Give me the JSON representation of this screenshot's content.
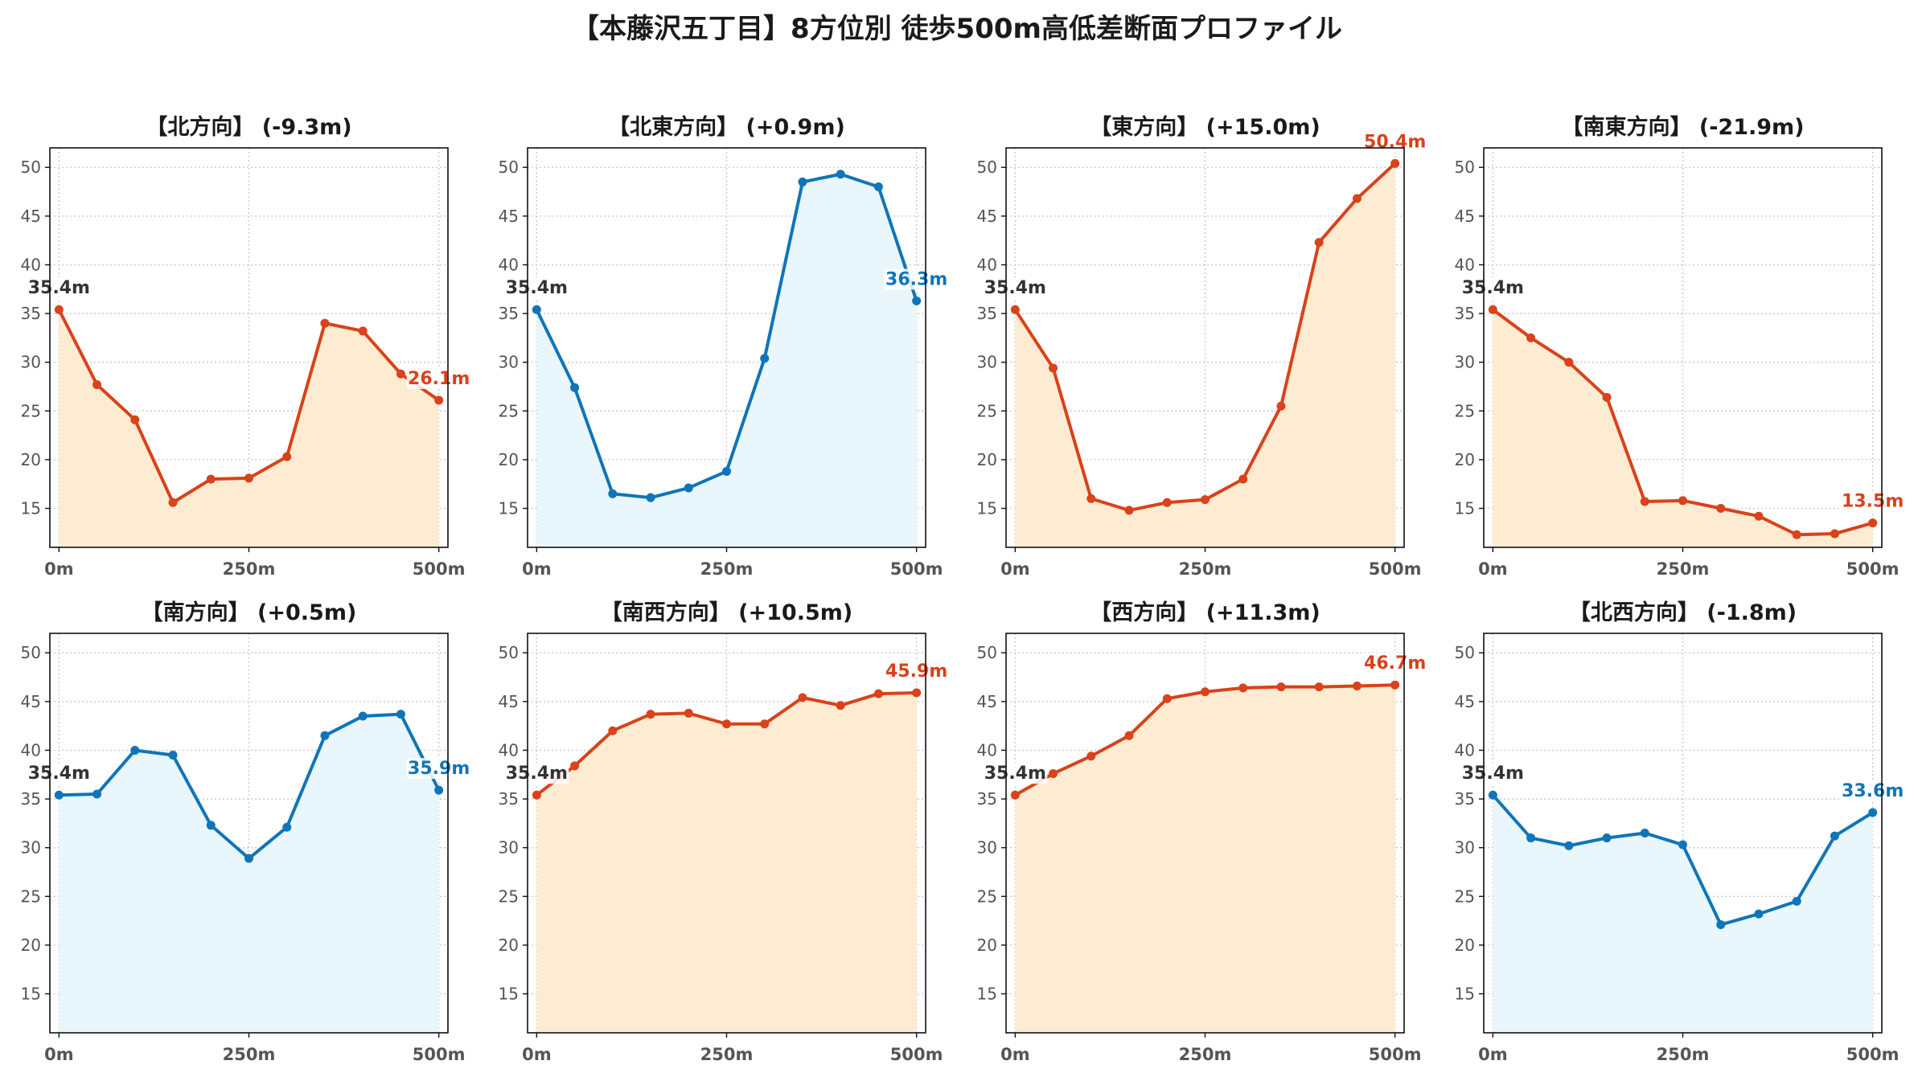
{
  "page": {
    "suptitle": "【本藤沢五丁目】8方位別 徒歩500m高低差断面プロファイル"
  },
  "colors": {
    "up": "#d9421a",
    "up_fill": "#fdecd2",
    "down": "#0f75b8",
    "down_fill": "#e9f6fb",
    "start_label": "#333333",
    "grid": "#c8c8c8",
    "axis": "#111111",
    "tick_label": "#555555"
  },
  "chart_data": [
    {
      "type": "area",
      "title": "【北方向】 (-9.3m)",
      "trend": "up",
      "x": [
        0,
        50,
        100,
        150,
        200,
        250,
        300,
        350,
        400,
        450,
        500
      ],
      "values": [
        35.4,
        27.7,
        24.1,
        15.6,
        18.0,
        18.1,
        20.3,
        34.0,
        33.2,
        28.8,
        26.1
      ],
      "start_label": "35.4m",
      "end_label": "26.1m",
      "xticks": [
        "0m",
        "250m",
        "500m"
      ],
      "yticks": [
        15,
        20,
        25,
        30,
        35,
        40,
        45,
        50
      ],
      "ylim": [
        11,
        52
      ],
      "xlim": [
        -12,
        512
      ],
      "grid": true
    },
    {
      "type": "area",
      "title": "【北東方向】 (+0.9m)",
      "trend": "down",
      "x": [
        0,
        50,
        100,
        150,
        200,
        250,
        300,
        350,
        400,
        450,
        500
      ],
      "values": [
        35.4,
        27.4,
        16.5,
        16.1,
        17.1,
        18.8,
        30.4,
        48.5,
        49.3,
        48.0,
        36.3
      ],
      "start_label": "35.4m",
      "end_label": "36.3m",
      "xticks": [
        "0m",
        "250m",
        "500m"
      ],
      "yticks": [
        15,
        20,
        25,
        30,
        35,
        40,
        45,
        50
      ],
      "ylim": [
        11,
        52
      ],
      "xlim": [
        -12,
        512
      ],
      "grid": true
    },
    {
      "type": "area",
      "title": "【東方向】 (+15.0m)",
      "trend": "up",
      "x": [
        0,
        50,
        100,
        150,
        200,
        250,
        300,
        350,
        400,
        450,
        500
      ],
      "values": [
        35.4,
        29.4,
        16.0,
        14.8,
        15.6,
        15.9,
        18.0,
        25.5,
        42.3,
        46.8,
        50.4
      ],
      "start_label": "35.4m",
      "end_label": "50.4m",
      "xticks": [
        "0m",
        "250m",
        "500m"
      ],
      "yticks": [
        15,
        20,
        25,
        30,
        35,
        40,
        45,
        50
      ],
      "ylim": [
        11,
        52
      ],
      "xlim": [
        -12,
        512
      ],
      "grid": true
    },
    {
      "type": "area",
      "title": "【南東方向】 (-21.9m)",
      "trend": "up",
      "x": [
        0,
        50,
        100,
        150,
        200,
        250,
        300,
        350,
        400,
        450,
        500
      ],
      "values": [
        35.4,
        32.5,
        30.0,
        26.4,
        15.7,
        15.8,
        15.0,
        14.2,
        12.3,
        12.4,
        13.5
      ],
      "start_label": "35.4m",
      "end_label": "13.5m",
      "xticks": [
        "0m",
        "250m",
        "500m"
      ],
      "yticks": [
        15,
        20,
        25,
        30,
        35,
        40,
        45,
        50
      ],
      "ylim": [
        11,
        52
      ],
      "xlim": [
        -12,
        512
      ],
      "grid": true
    },
    {
      "type": "area",
      "title": "【南方向】 (+0.5m)",
      "trend": "down",
      "x": [
        0,
        50,
        100,
        150,
        200,
        250,
        300,
        350,
        400,
        450,
        500
      ],
      "values": [
        35.4,
        35.5,
        40.0,
        39.5,
        32.3,
        28.9,
        32.1,
        41.5,
        43.5,
        43.7,
        35.9
      ],
      "start_label": "35.4m",
      "end_label": "35.9m",
      "xticks": [
        "0m",
        "250m",
        "500m"
      ],
      "yticks": [
        15,
        20,
        25,
        30,
        35,
        40,
        45,
        50
      ],
      "ylim": [
        11,
        52
      ],
      "xlim": [
        -12,
        512
      ],
      "grid": true
    },
    {
      "type": "area",
      "title": "【南西方向】 (+10.5m)",
      "trend": "up",
      "x": [
        0,
        50,
        100,
        150,
        200,
        250,
        300,
        350,
        400,
        450,
        500
      ],
      "values": [
        35.4,
        38.4,
        42.0,
        43.7,
        43.8,
        42.7,
        42.7,
        45.4,
        44.6,
        45.8,
        45.9
      ],
      "start_label": "35.4m",
      "end_label": "45.9m",
      "xticks": [
        "0m",
        "250m",
        "500m"
      ],
      "yticks": [
        15,
        20,
        25,
        30,
        35,
        40,
        45,
        50
      ],
      "ylim": [
        11,
        52
      ],
      "xlim": [
        -12,
        512
      ],
      "grid": true
    },
    {
      "type": "area",
      "title": "【西方向】 (+11.3m)",
      "trend": "up",
      "x": [
        0,
        50,
        100,
        150,
        200,
        250,
        300,
        350,
        400,
        450,
        500
      ],
      "values": [
        35.4,
        37.6,
        39.4,
        41.5,
        45.3,
        46.0,
        46.4,
        46.5,
        46.5,
        46.6,
        46.7
      ],
      "start_label": "35.4m",
      "end_label": "46.7m",
      "xticks": [
        "0m",
        "250m",
        "500m"
      ],
      "yticks": [
        15,
        20,
        25,
        30,
        35,
        40,
        45,
        50
      ],
      "ylim": [
        11,
        52
      ],
      "xlim": [
        -12,
        512
      ],
      "grid": true
    },
    {
      "type": "area",
      "title": "【北西方向】 (-1.8m)",
      "trend": "down",
      "x": [
        0,
        50,
        100,
        150,
        200,
        250,
        300,
        350,
        400,
        450,
        500
      ],
      "values": [
        35.4,
        31.0,
        30.2,
        31.0,
        31.5,
        30.3,
        22.1,
        23.2,
        24.5,
        31.2,
        33.6
      ],
      "start_label": "35.4m",
      "end_label": "33.6m",
      "xticks": [
        "0m",
        "250m",
        "500m"
      ],
      "yticks": [
        15,
        20,
        25,
        30,
        35,
        40,
        45,
        50
      ],
      "ylim": [
        11,
        52
      ],
      "xlim": [
        -12,
        512
      ],
      "grid": true
    }
  ]
}
